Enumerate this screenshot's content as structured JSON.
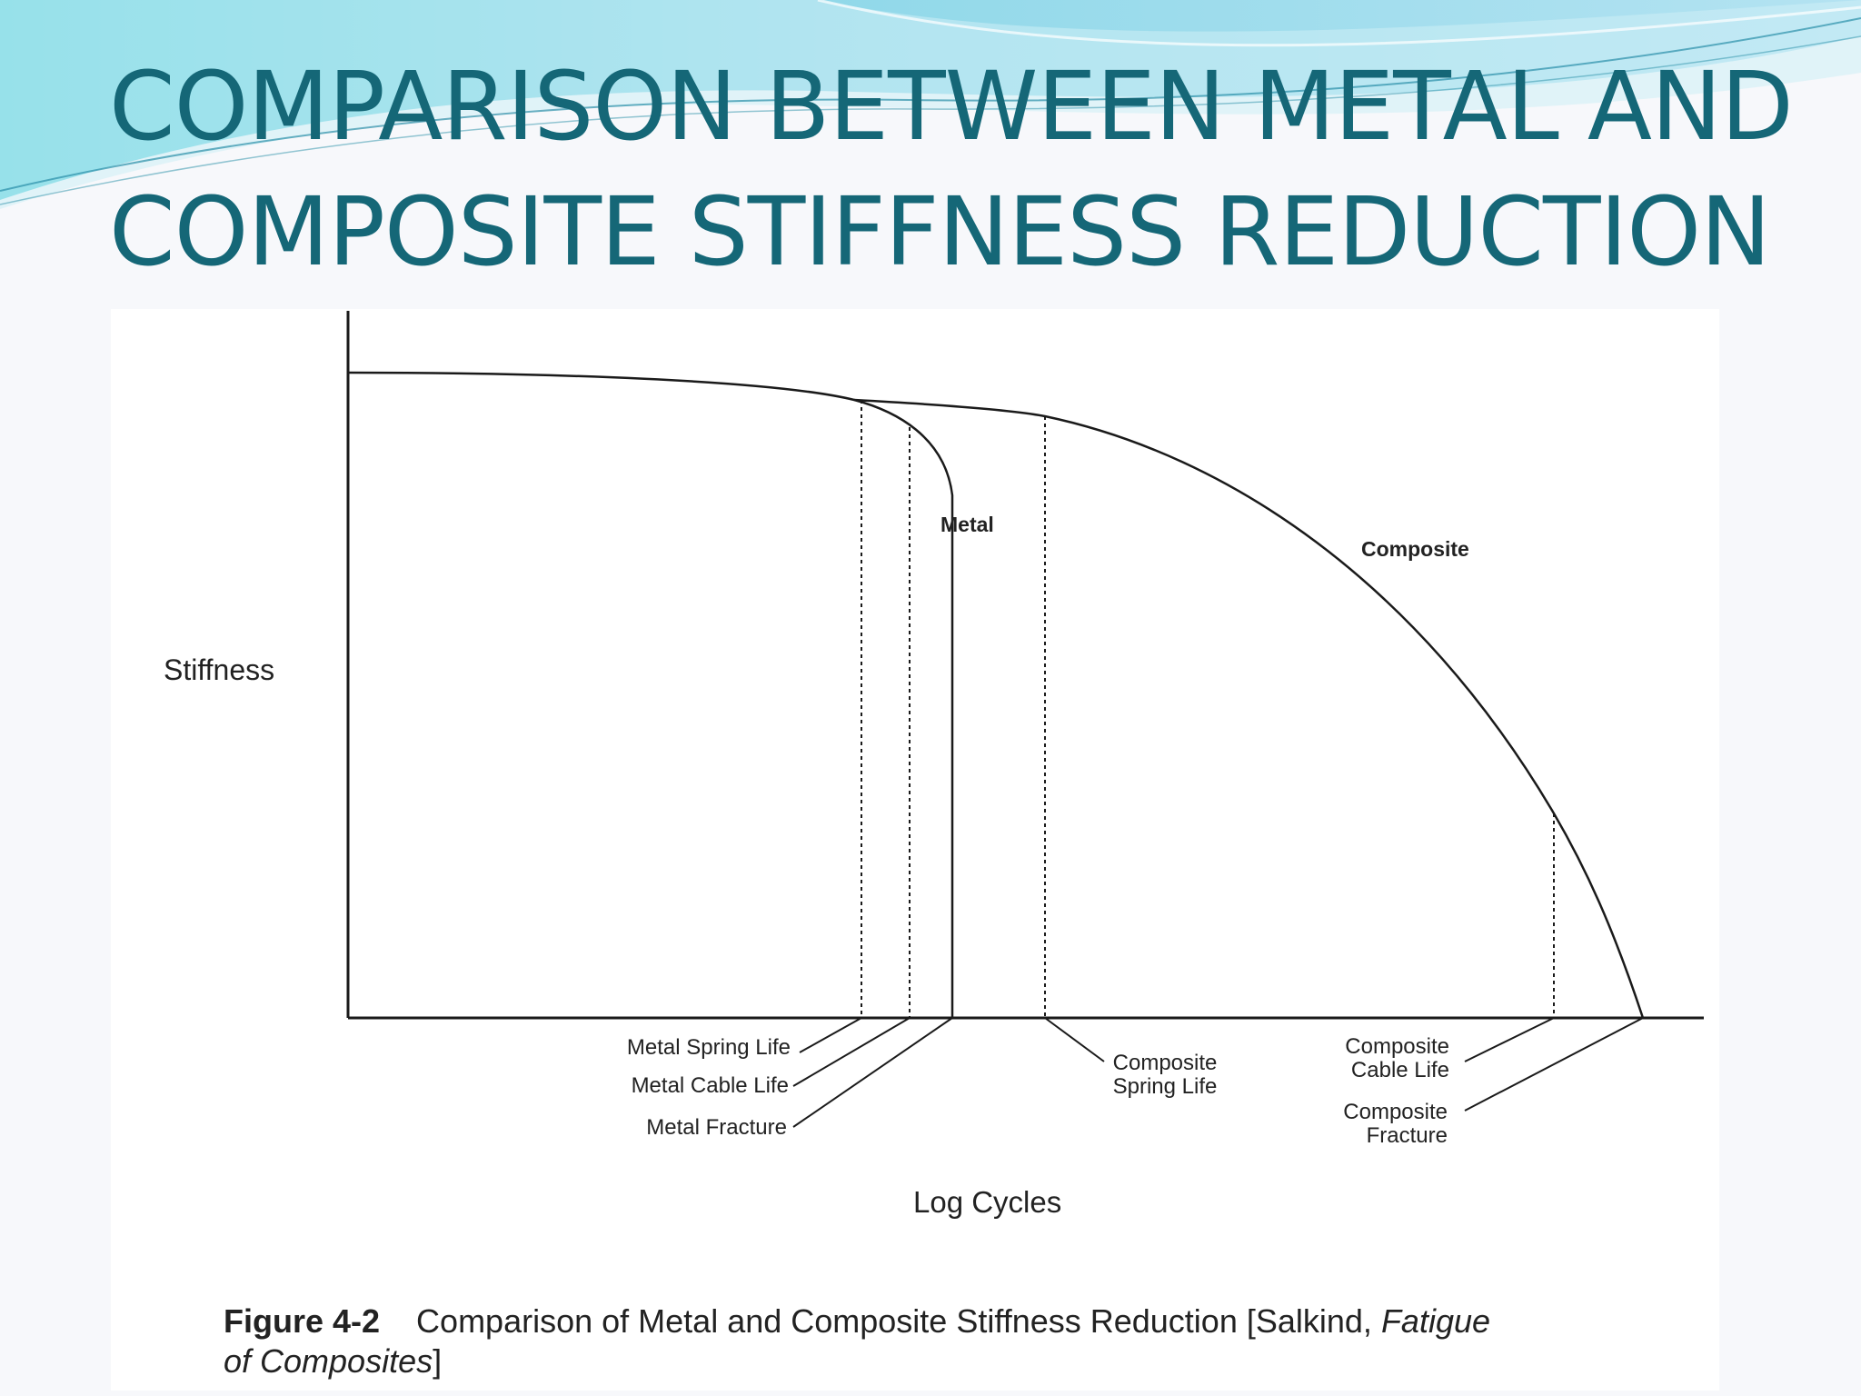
{
  "slide": {
    "title_line1": "COMPARISON BETWEEN METAL AND",
    "title_line2": "COMPOSITE STIFFNESS REDUCTION"
  },
  "figure": {
    "y_axis_label": "Stiffness",
    "x_axis_label": "Log Cycles",
    "curve_labels": {
      "metal": "Metal",
      "composite": "Composite"
    },
    "markers": {
      "metal_spring_life": "Metal Spring Life",
      "metal_cable_life": "Metal Cable Life",
      "metal_fracture": "Metal Fracture",
      "composite_spring_life_1": "Composite",
      "composite_spring_life_2": "Spring Life",
      "composite_cable_life_1": "Composite",
      "composite_cable_life_2": "Cable Life",
      "composite_fracture_1": "Composite",
      "composite_fracture_2": "Fracture"
    },
    "caption": {
      "number": "Figure 4-2",
      "text": "Comparison of Metal and Composite Stiffness Reduction [Salkind, ",
      "italic_1": "Fatigue",
      "italic_2": "of Composites",
      "end": "]"
    }
  },
  "colors": {
    "title": "#156777",
    "line": "#1a1a1a",
    "accent": "#3bbfd4"
  }
}
